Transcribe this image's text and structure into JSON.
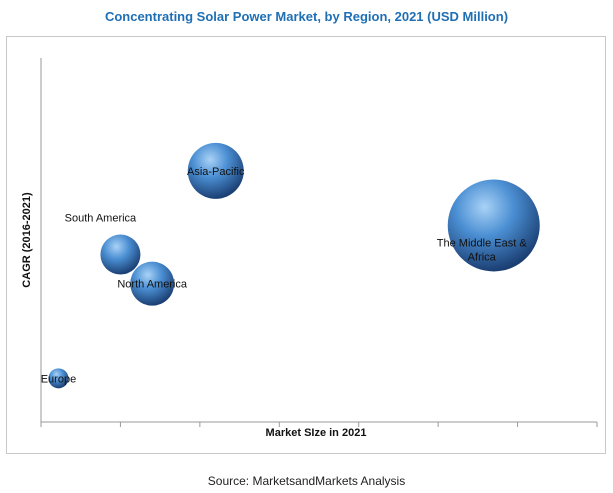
{
  "chart_data": {
    "type": "bubble",
    "title": "Concentrating Solar Power Market, by Region, 2021 (USD Million)",
    "xlabel": "Market SIze in 2021",
    "ylabel": "CAGR (2016-2021)",
    "grid": false,
    "points": [
      {
        "name": "Asia-Pacific",
        "x": 2.2,
        "y": 6.9,
        "size": 28
      },
      {
        "name": "South America",
        "x": 1.0,
        "y": 4.6,
        "size": 20
      },
      {
        "name": "North America",
        "x": 1.4,
        "y": 3.8,
        "size": 22
      },
      {
        "name": "The Middle East & Africa",
        "x": 5.7,
        "y": 5.4,
        "size": 46
      },
      {
        "name": "Europe",
        "x": 0.22,
        "y": 1.2,
        "size": 10
      }
    ],
    "xlim": [
      0,
      7
    ],
    "ylim": [
      0,
      10
    ],
    "xticks": 7
  },
  "source": "Source: MarketsandMarkets Analysis",
  "colors": {
    "title": "#1f6fb5",
    "bubble_light": "#8fc0ee",
    "bubble_mid": "#3f82c9",
    "bubble_dark": "#1b3f73"
  }
}
